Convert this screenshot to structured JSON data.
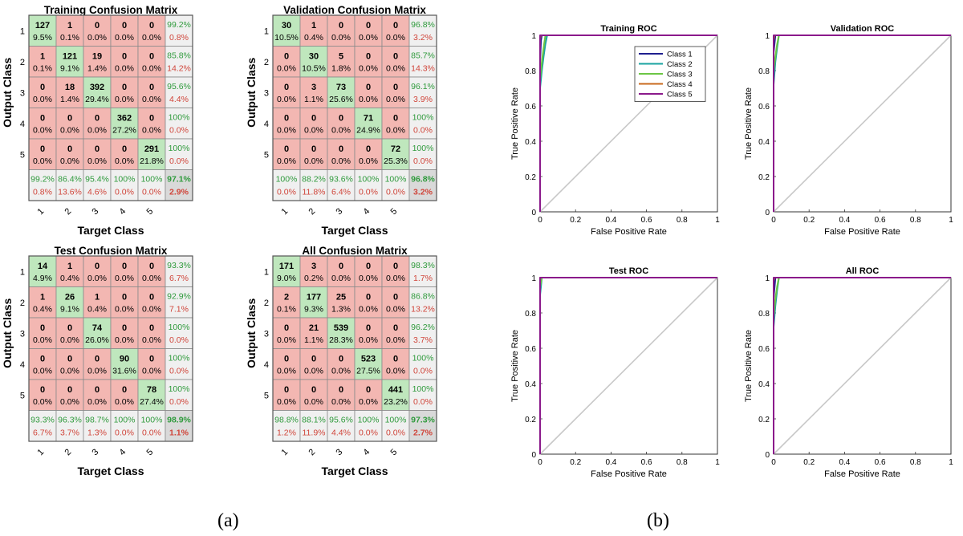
{
  "colors": {
    "diag_cell": "#bfe7bd",
    "off_cell": "#f3b7b2",
    "summary_cell": "#f0f0f0",
    "total_cell": "#d9d9d9",
    "grid_line": "#8a8a8a",
    "pct_green": "#2f9a3c",
    "pct_red": "#d0453a",
    "roc_diag": "#c8c8c8"
  },
  "panel_labels": [
    "(a)",
    "(b)"
  ],
  "chart_data": [
    {
      "type": "heatmap",
      "title": "Training Confusion Matrix",
      "xlabel": "Target Class",
      "ylabel": "Output Class",
      "class_labels": [
        "1",
        "2",
        "3",
        "4",
        "5"
      ],
      "counts": [
        [
          127,
          1,
          0,
          0,
          0
        ],
        [
          1,
          121,
          19,
          0,
          0
        ],
        [
          0,
          18,
          392,
          0,
          0
        ],
        [
          0,
          0,
          0,
          362,
          0
        ],
        [
          0,
          0,
          0,
          0,
          291
        ]
      ],
      "cell_pct": [
        [
          "9.5%",
          "0.1%",
          "0.0%",
          "0.0%",
          "0.0%"
        ],
        [
          "0.1%",
          "9.1%",
          "1.4%",
          "0.0%",
          "0.0%"
        ],
        [
          "0.0%",
          "1.4%",
          "29.4%",
          "0.0%",
          "0.0%"
        ],
        [
          "0.0%",
          "0.0%",
          "0.0%",
          "27.2%",
          "0.0%"
        ],
        [
          "0.0%",
          "0.0%",
          "0.0%",
          "0.0%",
          "21.8%"
        ]
      ],
      "row_summary": [
        [
          "99.2%",
          "0.8%"
        ],
        [
          "85.8%",
          "14.2%"
        ],
        [
          "95.6%",
          "4.4%"
        ],
        [
          "100%",
          "0.0%"
        ],
        [
          "100%",
          "0.0%"
        ]
      ],
      "col_summary": [
        [
          "99.2%",
          "0.8%"
        ],
        [
          "86.4%",
          "13.6%"
        ],
        [
          "95.4%",
          "4.6%"
        ],
        [
          "100%",
          "0.0%"
        ],
        [
          "100%",
          "0.0%"
        ]
      ],
      "overall": [
        "97.1%",
        "2.9%"
      ]
    },
    {
      "type": "heatmap",
      "title": "Validation Confusion Matrix",
      "xlabel": "Target Class",
      "ylabel": "Output Class",
      "class_labels": [
        "1",
        "2",
        "3",
        "4",
        "5"
      ],
      "counts": [
        [
          30,
          1,
          0,
          0,
          0
        ],
        [
          0,
          30,
          5,
          0,
          0
        ],
        [
          0,
          3,
          73,
          0,
          0
        ],
        [
          0,
          0,
          0,
          71,
          0
        ],
        [
          0,
          0,
          0,
          0,
          72
        ]
      ],
      "cell_pct": [
        [
          "10.5%",
          "0.4%",
          "0.0%",
          "0.0%",
          "0.0%"
        ],
        [
          "0.0%",
          "10.5%",
          "1.8%",
          "0.0%",
          "0.0%"
        ],
        [
          "0.0%",
          "1.1%",
          "25.6%",
          "0.0%",
          "0.0%"
        ],
        [
          "0.0%",
          "0.0%",
          "0.0%",
          "24.9%",
          "0.0%"
        ],
        [
          "0.0%",
          "0.0%",
          "0.0%",
          "0.0%",
          "25.3%"
        ]
      ],
      "row_summary": [
        [
          "96.8%",
          "3.2%"
        ],
        [
          "85.7%",
          "14.3%"
        ],
        [
          "96.1%",
          "3.9%"
        ],
        [
          "100%",
          "0.0%"
        ],
        [
          "100%",
          "0.0%"
        ]
      ],
      "col_summary": [
        [
          "100%",
          "0.0%"
        ],
        [
          "88.2%",
          "11.8%"
        ],
        [
          "93.6%",
          "6.4%"
        ],
        [
          "100%",
          "0.0%"
        ],
        [
          "100%",
          "0.0%"
        ]
      ],
      "overall": [
        "96.8%",
        "3.2%"
      ]
    },
    {
      "type": "heatmap",
      "title": "Test Confusion Matrix",
      "xlabel": "Target Class",
      "ylabel": "Output Class",
      "class_labels": [
        "1",
        "2",
        "3",
        "4",
        "5"
      ],
      "counts": [
        [
          14,
          1,
          0,
          0,
          0
        ],
        [
          1,
          26,
          1,
          0,
          0
        ],
        [
          0,
          0,
          74,
          0,
          0
        ],
        [
          0,
          0,
          0,
          90,
          0
        ],
        [
          0,
          0,
          0,
          0,
          78
        ]
      ],
      "cell_pct": [
        [
          "4.9%",
          "0.4%",
          "0.0%",
          "0.0%",
          "0.0%"
        ],
        [
          "0.4%",
          "9.1%",
          "0.4%",
          "0.0%",
          "0.0%"
        ],
        [
          "0.0%",
          "0.0%",
          "26.0%",
          "0.0%",
          "0.0%"
        ],
        [
          "0.0%",
          "0.0%",
          "0.0%",
          "31.6%",
          "0.0%"
        ],
        [
          "0.0%",
          "0.0%",
          "0.0%",
          "0.0%",
          "27.4%"
        ]
      ],
      "row_summary": [
        [
          "93.3%",
          "6.7%"
        ],
        [
          "92.9%",
          "7.1%"
        ],
        [
          "100%",
          "0.0%"
        ],
        [
          "100%",
          "0.0%"
        ],
        [
          "100%",
          "0.0%"
        ]
      ],
      "col_summary": [
        [
          "93.3%",
          "6.7%"
        ],
        [
          "96.3%",
          "3.7%"
        ],
        [
          "98.7%",
          "1.3%"
        ],
        [
          "100%",
          "0.0%"
        ],
        [
          "100%",
          "0.0%"
        ]
      ],
      "overall": [
        "98.9%",
        "1.1%"
      ]
    },
    {
      "type": "heatmap",
      "title": "All Confusion Matrix",
      "xlabel": "Target Class",
      "ylabel": "Output Class",
      "class_labels": [
        "1",
        "2",
        "3",
        "4",
        "5"
      ],
      "counts": [
        [
          171,
          3,
          0,
          0,
          0
        ],
        [
          2,
          177,
          25,
          0,
          0
        ],
        [
          0,
          21,
          539,
          0,
          0
        ],
        [
          0,
          0,
          0,
          523,
          0
        ],
        [
          0,
          0,
          0,
          0,
          441
        ]
      ],
      "cell_pct": [
        [
          "9.0%",
          "0.2%",
          "0.0%",
          "0.0%",
          "0.0%"
        ],
        [
          "0.1%",
          "9.3%",
          "1.3%",
          "0.0%",
          "0.0%"
        ],
        [
          "0.0%",
          "1.1%",
          "28.3%",
          "0.0%",
          "0.0%"
        ],
        [
          "0.0%",
          "0.0%",
          "0.0%",
          "27.5%",
          "0.0%"
        ],
        [
          "0.0%",
          "0.0%",
          "0.0%",
          "0.0%",
          "23.2%"
        ]
      ],
      "row_summary": [
        [
          "98.3%",
          "1.7%"
        ],
        [
          "86.8%",
          "13.2%"
        ],
        [
          "96.2%",
          "3.7%"
        ],
        [
          "100%",
          "0.0%"
        ],
        [
          "100%",
          "0.0%"
        ]
      ],
      "col_summary": [
        [
          "98.8%",
          "1.2%"
        ],
        [
          "88.1%",
          "11.9%"
        ],
        [
          "95.6%",
          "4.4%"
        ],
        [
          "100%",
          "0.0%"
        ],
        [
          "100%",
          "0.0%"
        ]
      ],
      "overall": [
        "97.3%",
        "2.7%"
      ]
    },
    {
      "type": "line",
      "title": "Training ROC",
      "xlabel": "False Positive Rate",
      "ylabel": "True Positive Rate",
      "xlim": [
        0,
        1
      ],
      "ylim": [
        0,
        1
      ],
      "xticks": [
        "0",
        "0.2",
        "0.4",
        "0.6",
        "0.8",
        "1"
      ],
      "yticks": [
        "0",
        "0.2",
        "0.4",
        "0.6",
        "0.8",
        "1"
      ],
      "legend_position": "top-right",
      "series": [
        {
          "name": "Class 1",
          "color": "#1f1f8f",
          "x": [
            0,
            0,
            0.005,
            0.01,
            1
          ],
          "y": [
            0,
            0.85,
            0.97,
            1,
            1
          ]
        },
        {
          "name": "Class 2",
          "color": "#1aa3a0",
          "x": [
            0,
            0,
            0.01,
            0.02,
            0.03,
            0.04,
            1
          ],
          "y": [
            0,
            0.7,
            0.8,
            0.88,
            0.95,
            1,
            1
          ]
        },
        {
          "name": "Class 3",
          "color": "#6cc644",
          "x": [
            0,
            0,
            0.01,
            0.02,
            0.03,
            1
          ],
          "y": [
            0,
            0.75,
            0.85,
            0.93,
            1,
            1
          ]
        },
        {
          "name": "Class 4",
          "color": "#c8691c",
          "x": [
            0,
            0,
            0.005,
            1
          ],
          "y": [
            0,
            0.98,
            1,
            1
          ]
        },
        {
          "name": "Class 5",
          "color": "#8b1a8b",
          "x": [
            0,
            0,
            1
          ],
          "y": [
            0,
            1,
            1
          ]
        }
      ]
    },
    {
      "type": "line",
      "title": "Validation ROC",
      "xlabel": "False Positive Rate",
      "ylabel": "True Positive Rate",
      "xlim": [
        0,
        1
      ],
      "ylim": [
        0,
        1
      ],
      "xticks": [
        "0",
        "0.2",
        "0.4",
        "0.6",
        "0.8",
        "1"
      ],
      "yticks": [
        "0",
        "0.2",
        "0.4",
        "0.6",
        "0.8",
        "1"
      ],
      "series": [
        {
          "name": "Class 1",
          "color": "#1f1f8f",
          "x": [
            0,
            0,
            0.01,
            1
          ],
          "y": [
            0,
            0.9,
            1,
            1
          ]
        },
        {
          "name": "Class 2",
          "color": "#1aa3a0",
          "x": [
            0,
            0,
            0.01,
            0.02,
            0.03,
            1
          ],
          "y": [
            0,
            0.72,
            0.85,
            0.93,
            1,
            1
          ]
        },
        {
          "name": "Class 3",
          "color": "#6cc644",
          "x": [
            0,
            0,
            0.01,
            0.02,
            0.03,
            1
          ],
          "y": [
            0,
            0.8,
            0.88,
            0.95,
            1,
            1
          ]
        },
        {
          "name": "Class 4",
          "color": "#c8691c",
          "x": [
            0,
            0,
            0.005,
            1
          ],
          "y": [
            0,
            0.97,
            1,
            1
          ]
        },
        {
          "name": "Class 5",
          "color": "#8b1a8b",
          "x": [
            0,
            0,
            1
          ],
          "y": [
            0,
            1,
            1
          ]
        }
      ]
    },
    {
      "type": "line",
      "title": "Test ROC",
      "xlabel": "False Positive Rate",
      "ylabel": "True Positive Rate",
      "xlim": [
        0,
        1
      ],
      "ylim": [
        0,
        1
      ],
      "xticks": [
        "0",
        "0.2",
        "0.4",
        "0.6",
        "0.8",
        "1"
      ],
      "yticks": [
        "0",
        "0.2",
        "0.4",
        "0.6",
        "0.8",
        "1"
      ],
      "series": [
        {
          "name": "Class 1",
          "color": "#1f1f8f",
          "x": [
            0,
            0,
            0.005,
            1
          ],
          "y": [
            0,
            0.93,
            1,
            1
          ]
        },
        {
          "name": "Class 2",
          "color": "#1aa3a0",
          "x": [
            0,
            0,
            0.01,
            1
          ],
          "y": [
            0,
            0.9,
            1,
            1
          ]
        },
        {
          "name": "Class 3",
          "color": "#6cc644",
          "x": [
            0,
            0,
            0.01,
            1
          ],
          "y": [
            0,
            0.95,
            1,
            1
          ]
        },
        {
          "name": "Class 4",
          "color": "#c8691c",
          "x": [
            0,
            0,
            1
          ],
          "y": [
            0,
            1,
            1
          ]
        },
        {
          "name": "Class 5",
          "color": "#8b1a8b",
          "x": [
            0,
            0,
            1
          ],
          "y": [
            0,
            1,
            1
          ]
        }
      ]
    },
    {
      "type": "line",
      "title": "All ROC",
      "xlabel": "False Positive Rate",
      "ylabel": "True Positive Rate",
      "xlim": [
        0,
        1
      ],
      "ylim": [
        0,
        1
      ],
      "xticks": [
        "0",
        "0.2",
        "0.4",
        "0.6",
        "0.8",
        "1"
      ],
      "yticks": [
        "0",
        "0.2",
        "0.4",
        "0.6",
        "0.8",
        "1"
      ],
      "series": [
        {
          "name": "Class 1",
          "color": "#1f1f8f",
          "x": [
            0,
            0,
            0.01,
            1
          ],
          "y": [
            0,
            0.88,
            1,
            1
          ]
        },
        {
          "name": "Class 2",
          "color": "#1aa3a0",
          "x": [
            0,
            0,
            0.01,
            0.02,
            0.03,
            1
          ],
          "y": [
            0,
            0.72,
            0.84,
            0.93,
            1,
            1
          ]
        },
        {
          "name": "Class 3",
          "color": "#6cc644",
          "x": [
            0,
            0,
            0.01,
            0.02,
            0.03,
            1
          ],
          "y": [
            0,
            0.78,
            0.88,
            0.95,
            1,
            1
          ]
        },
        {
          "name": "Class 4",
          "color": "#c8691c",
          "x": [
            0,
            0,
            0.005,
            1
          ],
          "y": [
            0,
            0.98,
            1,
            1
          ]
        },
        {
          "name": "Class 5",
          "color": "#8b1a8b",
          "x": [
            0,
            0,
            1
          ],
          "y": [
            0,
            1,
            1
          ]
        }
      ]
    }
  ]
}
